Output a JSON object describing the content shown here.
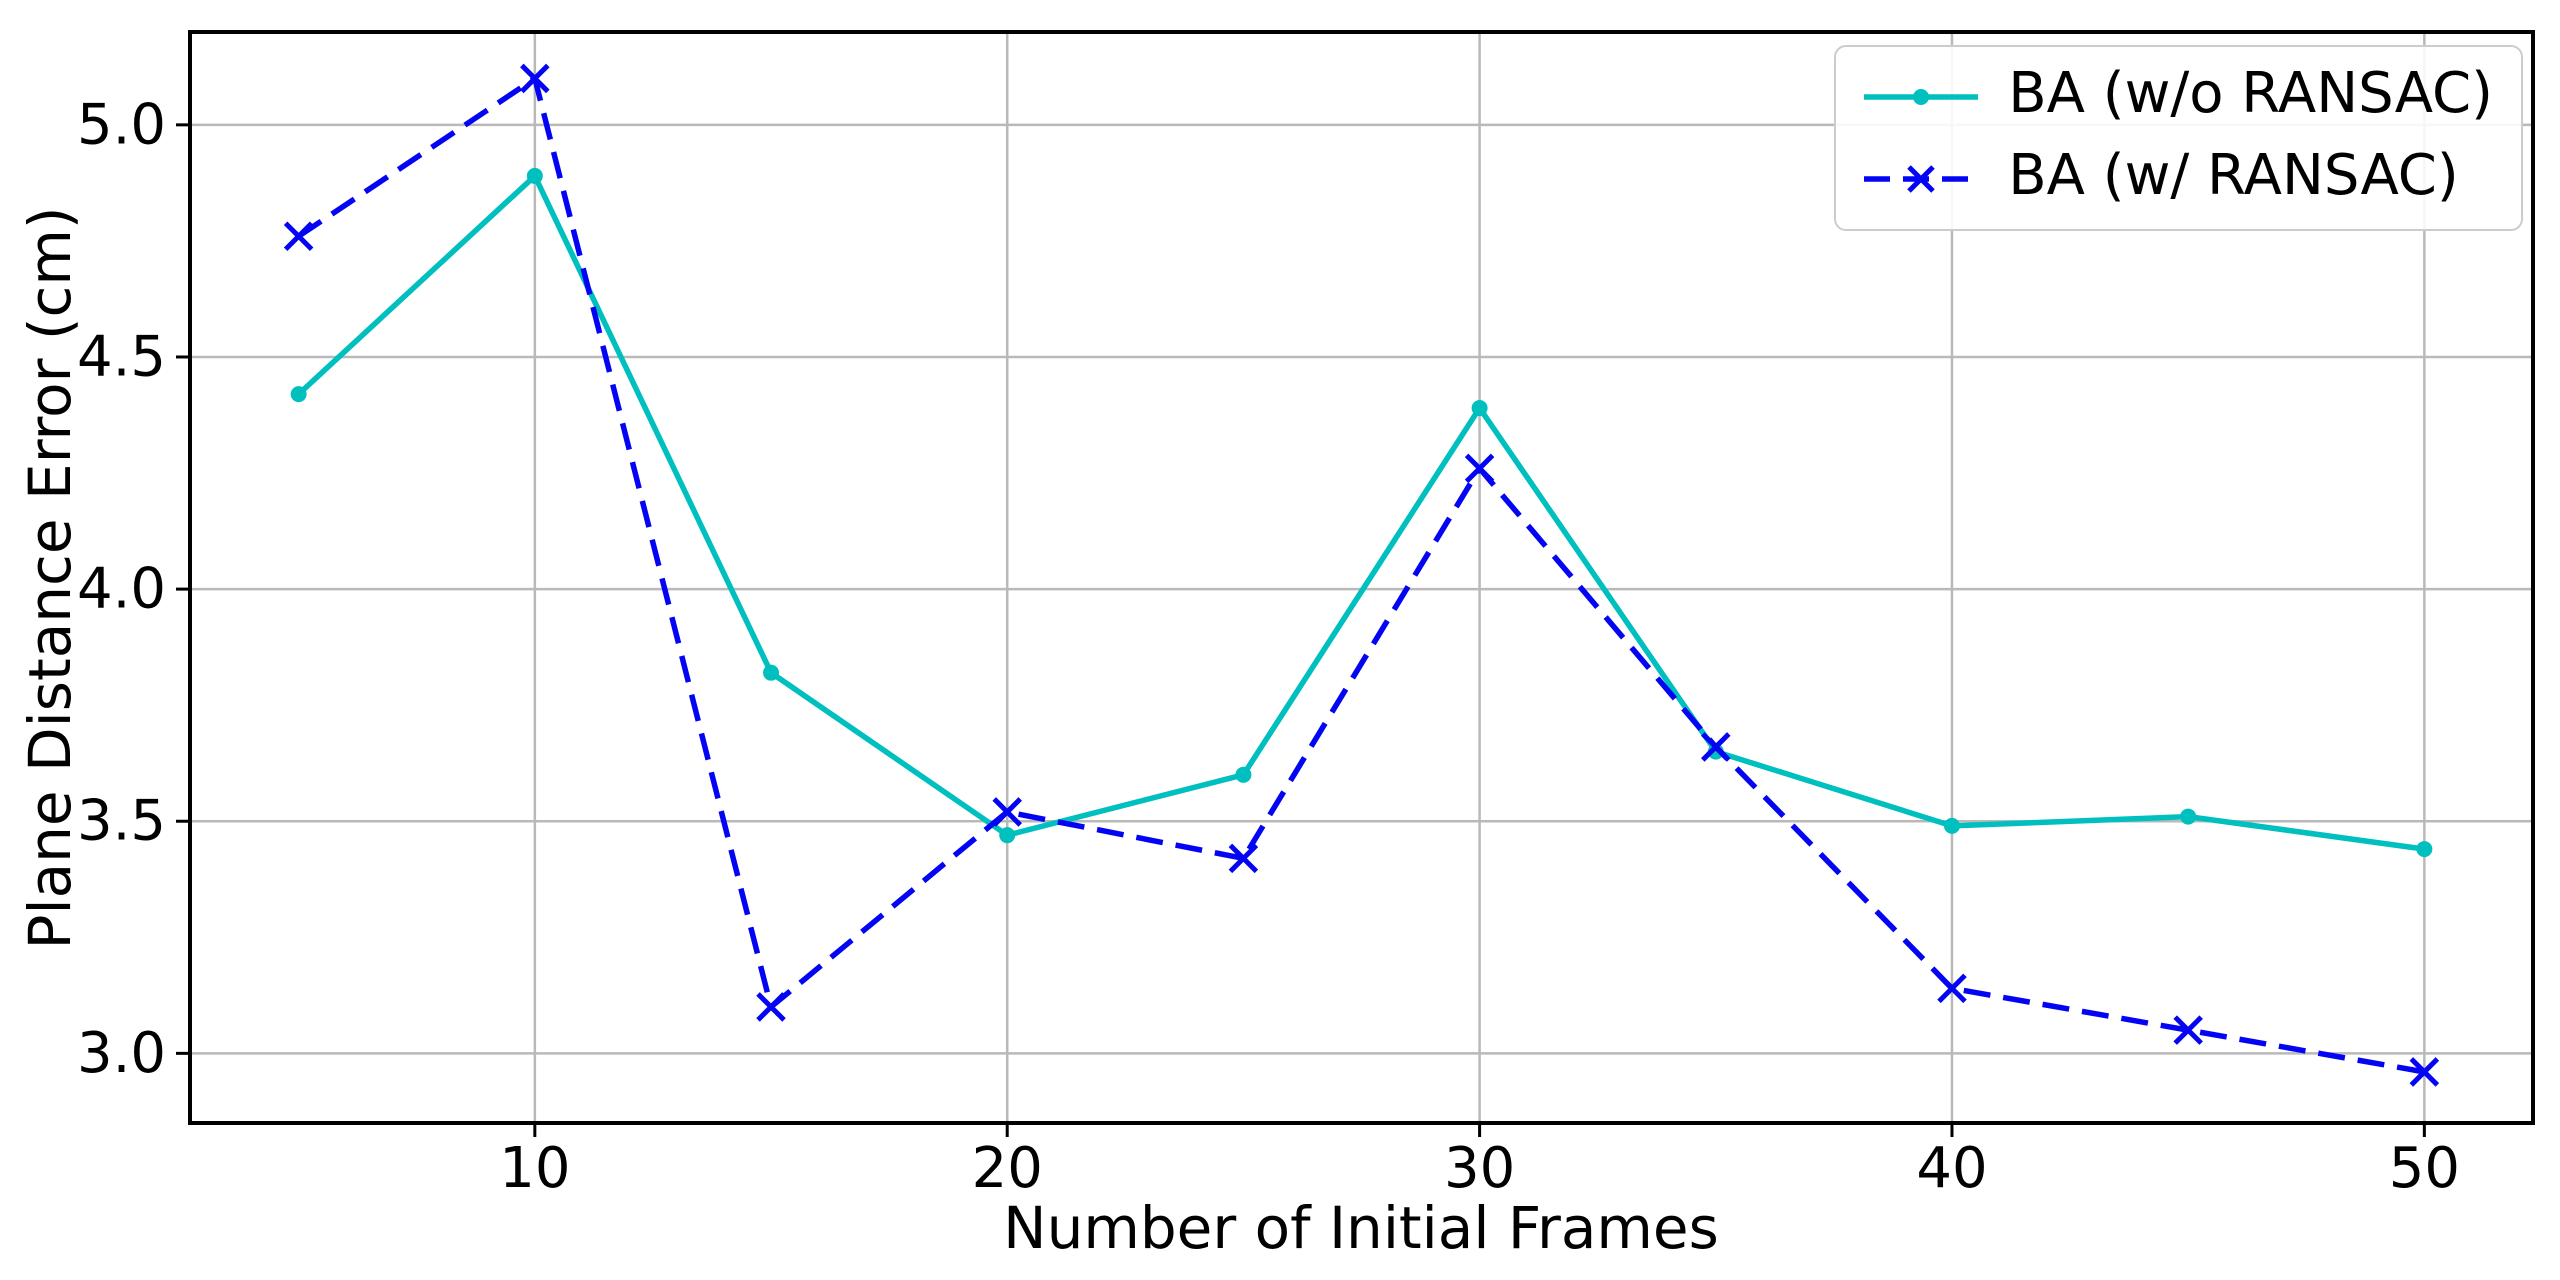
{
  "chart_data": {
    "type": "line",
    "title": "",
    "xlabel": "Number of Initial Frames",
    "ylabel": "Plane Distance Error (cm)",
    "x": [
      5,
      10,
      15,
      20,
      25,
      30,
      35,
      40,
      45,
      50
    ],
    "series": [
      {
        "name": "BA (w/o RANSAC)",
        "color": "#00bfbf",
        "line_style": "solid",
        "marker": "dot",
        "values": [
          4.42,
          4.89,
          3.82,
          3.47,
          3.6,
          4.39,
          3.65,
          3.49,
          3.51,
          3.44
        ]
      },
      {
        "name": "BA (w/ RANSAC)",
        "color": "#0404f5",
        "line_style": "dashed",
        "marker": "x",
        "values": [
          4.76,
          5.1,
          3.1,
          3.52,
          3.42,
          4.26,
          3.66,
          3.14,
          3.05,
          2.96
        ]
      }
    ],
    "xticks": [
      "10",
      "20",
      "30",
      "40",
      "50"
    ],
    "xtick_values": [
      10,
      20,
      30,
      40,
      50
    ],
    "yticks": [
      "3.0",
      "3.5",
      "4.0",
      "4.5",
      "5.0"
    ],
    "ytick_values": [
      3.0,
      3.5,
      4.0,
      4.5,
      5.0
    ],
    "xlim": [
      2.7,
      52.3
    ],
    "ylim": [
      2.85,
      5.2
    ],
    "grid": true,
    "legend_position": "upper right",
    "colors": {
      "background": "#ffffff",
      "grid": "#b9b9b9",
      "axis": "#000000",
      "tick_label": "#000000"
    }
  }
}
